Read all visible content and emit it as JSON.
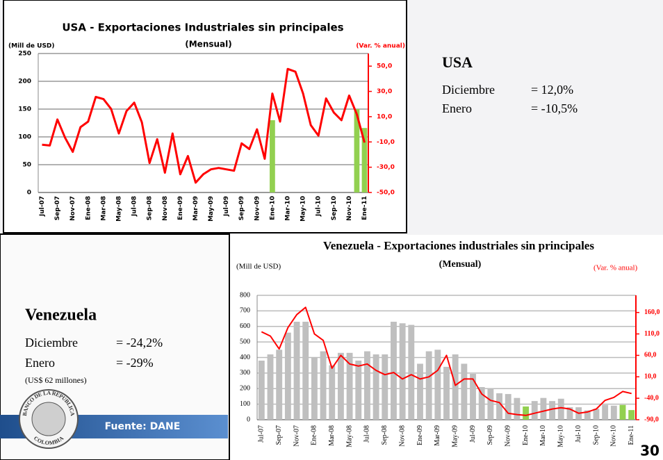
{
  "chart_data": [
    {
      "type": "combo",
      "title": "USA - Exportaciones Industriales sin principales",
      "subtitle": "(Mensual)",
      "ylabel": "(Mill de USD)",
      "y2label": "(Var. % anual)",
      "categories": [
        "Jul-07",
        null,
        "Sep-07",
        null,
        "Nov-07",
        null,
        "Ene-08",
        null,
        "Mar-08",
        null,
        "May-08",
        null,
        "Jul-08",
        null,
        "Sep-08",
        null,
        "Nov-08",
        null,
        "Ene-09",
        null,
        "Mar-09",
        null,
        "May-09",
        null,
        "Jul-09",
        null,
        "Sep-09",
        null,
        "Nov-09",
        null,
        "Ene-10",
        null,
        "Mar-10",
        null,
        "May-10",
        null,
        "Jul-10",
        null,
        "Sep-10",
        null,
        "Nov-10",
        null,
        "Ene-11"
      ],
      "series": [
        {
          "type": "bar",
          "color": "#92d050",
          "values": [
            null,
            null,
            null,
            null,
            null,
            null,
            null,
            null,
            null,
            null,
            null,
            null,
            null,
            null,
            null,
            null,
            null,
            null,
            null,
            null,
            null,
            null,
            null,
            null,
            null,
            null,
            null,
            null,
            null,
            null,
            130,
            null,
            null,
            null,
            null,
            null,
            null,
            null,
            null,
            null,
            null,
            150,
            116
          ]
        },
        {
          "type": "line",
          "axis": "y2",
          "color": "#ff0000",
          "values": [
            -12.2,
            -12.8,
            7.8,
            -6.7,
            -17.8,
            1.7,
            6.1,
            25.6,
            23.9,
            16.1,
            -3.3,
            14.4,
            21.1,
            5.6,
            -26.7,
            -7.8,
            -34.4,
            -3.3,
            -35.6,
            -21.1,
            -42.2,
            -35.6,
            -31.7,
            -30.6,
            -31.7,
            -32.8,
            -11.1,
            -15.6,
            0,
            -23.3,
            28.3,
            6.1,
            47.8,
            45.6,
            28.3,
            3.3,
            -5,
            24.4,
            13.3,
            7.2,
            26.7,
            12.0,
            -10.5
          ]
        }
      ],
      "ylim": [
        0,
        250
      ],
      "yticks": [
        0,
        50,
        100,
        150,
        200,
        250
      ],
      "y2lim": [
        -50,
        60
      ],
      "y2ticks": [
        {
          "value": -50,
          "label": "-50,0"
        },
        {
          "value": -30,
          "label": "-30,0"
        },
        {
          "value": -10,
          "label": "-10,0"
        },
        {
          "value": 10,
          "label": "10,0"
        },
        {
          "value": 30,
          "label": "30,0"
        },
        {
          "value": 50,
          "label": "50,0"
        }
      ],
      "grid": true
    },
    {
      "type": "combo",
      "title": "Venezuela - Exportaciones industriales sin principales",
      "subtitle": "(Mensual)",
      "ylabel": "(Mill de USD)",
      "y2label": "(Var. % anual)",
      "categories": [
        "Jul-07",
        null,
        "Sep-07",
        null,
        "Nov-07",
        null,
        "Ene-08",
        null,
        "Mar-08",
        null,
        "May-08",
        null,
        "Jul-08",
        null,
        "Sep-08",
        null,
        "Nov-08",
        null,
        "Ene-09",
        null,
        "Mar-09",
        null,
        "May-09",
        null,
        "Jul-09",
        null,
        "Sep-09",
        null,
        "Nov-09",
        null,
        "Ene-10",
        null,
        "Mar-10",
        null,
        "May-10",
        null,
        "Jul-10",
        null,
        "Sep-10",
        null,
        "Nov-10",
        null,
        "Ene-11"
      ],
      "series": [
        {
          "type": "bar",
          "colors": [
            "#bfbfbf",
            "#bfbfbf",
            "#bfbfbf",
            "#bfbfbf",
            "#bfbfbf",
            "#bfbfbf",
            "#bfbfbf",
            "#bfbfbf",
            "#bfbfbf",
            "#bfbfbf",
            "#bfbfbf",
            "#bfbfbf",
            "#bfbfbf",
            "#bfbfbf",
            "#bfbfbf",
            "#bfbfbf",
            "#bfbfbf",
            "#bfbfbf",
            "#bfbfbf",
            "#bfbfbf",
            "#bfbfbf",
            "#bfbfbf",
            "#bfbfbf",
            "#bfbfbf",
            "#bfbfbf",
            "#bfbfbf",
            "#bfbfbf",
            "#bfbfbf",
            "#bfbfbf",
            "#bfbfbf",
            "#92d050",
            "#bfbfbf",
            "#bfbfbf",
            "#bfbfbf",
            "#bfbfbf",
            "#bfbfbf",
            "#bfbfbf",
            "#bfbfbf",
            "#bfbfbf",
            "#bfbfbf",
            "#bfbfbf",
            "#92d050",
            "#92d050"
          ],
          "values": [
            380,
            420,
            450,
            560,
            630,
            630,
            400,
            440,
            350,
            430,
            430,
            380,
            440,
            420,
            420,
            630,
            620,
            610,
            360,
            440,
            450,
            340,
            420,
            360,
            295,
            210,
            200,
            170,
            165,
            140,
            85,
            120,
            140,
            120,
            135,
            80,
            80,
            60,
            70,
            95,
            90,
            95,
            62
          ]
        },
        {
          "type": "line",
          "axis": "y2",
          "color": "#ff0000",
          "values": [
            115,
            105,
            75,
            125,
            155,
            172,
            110,
            95,
            30,
            60,
            40,
            35,
            40,
            25,
            15,
            20,
            5,
            15,
            5,
            10,
            25,
            60,
            -10,
            5,
            5,
            -30,
            -45,
            -50,
            -75,
            -78,
            -80,
            -75,
            -70,
            -65,
            -62,
            -65,
            -75,
            -72,
            -65,
            -45,
            -38,
            -24.2,
            -29
          ]
        }
      ],
      "ylim": [
        0,
        800
      ],
      "yticks": [
        0,
        100,
        200,
        300,
        400,
        500,
        600,
        700,
        800
      ],
      "y2lim": [
        -90,
        200
      ],
      "y2ticks": [
        {
          "value": -90,
          "label": "-90,0"
        },
        {
          "value": -40,
          "label": "-40,0"
        },
        {
          "value": 10,
          "label": "10,0"
        },
        {
          "value": 60,
          "label": "60,0"
        },
        {
          "value": 110,
          "label": "110,0"
        },
        {
          "value": 160,
          "label": "160,0"
        }
      ],
      "grid": true
    }
  ],
  "usa_panel": {
    "title": "USA",
    "rows": [
      {
        "label": "Diciembre",
        "value": "= 12,0%"
      },
      {
        "label": "Enero",
        "value": "= -10,5%"
      }
    ]
  },
  "venezuela_panel": {
    "title": "Venezuela",
    "rows": [
      {
        "label": "Diciembre",
        "value": "= -24,2%"
      },
      {
        "label": "Enero",
        "value": "= -29%"
      }
    ],
    "note": "(US$ 62 millones)"
  },
  "logo": {
    "top": "BANCO DE LA REPUBLICA",
    "bottom": "COLOMBIA"
  },
  "source": "Fuente: DANE",
  "page_number": "30"
}
